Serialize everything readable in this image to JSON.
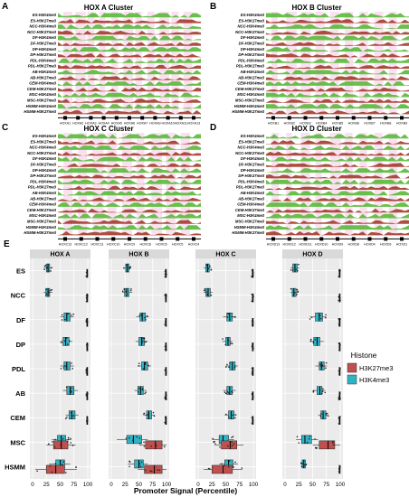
{
  "panels": {
    "A": {
      "letter": "A",
      "title": "HOX A Cluster",
      "genes": [
        "HOXA1",
        "HOXA2",
        "HOXA3",
        "HOXA4",
        "HOXA5",
        "HOXA6",
        "HOXA7",
        "HOXA9",
        "HOXA10",
        "HOXA11",
        "HOXA13"
      ]
    },
    "B": {
      "letter": "B",
      "title": "HOX B Cluster",
      "genes": [
        "HOXB1",
        "HOXB2",
        "HOXB3",
        "HOXB4",
        "HOXB5",
        "HOXB6",
        "HOXB7",
        "HOXB8",
        "HOXB9"
      ]
    },
    "C": {
      "letter": "C",
      "title": "HOX C Cluster",
      "genes": [
        "HOXC13",
        "HOXC12",
        "HOXC11",
        "HOXC10",
        "HOXC9",
        "HOXC8",
        "HOXC6",
        "HOXC5",
        "HOXC4"
      ]
    },
    "D": {
      "letter": "D",
      "title": "HOX D Cluster",
      "genes": [
        "HOXD13",
        "HOXD12",
        "HOXD11",
        "HOXD10",
        "HOXD9",
        "HOXD8",
        "HOXD4",
        "HOXD3",
        "HOXD1"
      ]
    }
  },
  "track_labels": [
    "ES-H3K4me3",
    "ES-H3K27me3",
    "NCC-H3K4me3",
    "NCC-H3K27me3",
    "DF-H3K4me3",
    "DF-H3K27me3",
    "DP-H3K4me3",
    "DP-H3K27me3",
    "PDL-H3K4me3",
    "PDL-H3K27me3",
    "AB-H3K4me3",
    "AB-H3K27me3",
    "CEM-H3K4me3",
    "CEM-H3K27me3",
    "MSC-H3K4me3",
    "MSC-H3K27me3",
    "HSMM-H3K4me3",
    "HSMM-H3K27me3"
  ],
  "colors": {
    "H3K27me3": "#c0504d",
    "H3K4me3": "#2fb4c6",
    "k4_track": "#59b93a",
    "k27_track": "#a33b2b",
    "strip": "#d9d9d9",
    "panel_bg": "#ebebeb"
  },
  "chart_data": {
    "type": "box",
    "panel_letter": "E",
    "facets": [
      "HOX A",
      "HOX B",
      "HOX C",
      "HOX D"
    ],
    "cell_types": [
      "ES",
      "NCC",
      "DF",
      "DP",
      "PDL",
      "AB",
      "CEM",
      "MSC",
      "HSMM"
    ],
    "xlabel": "Promoter Signal (Percentile)",
    "xlim": [
      0,
      100
    ],
    "xticks": [
      0,
      25,
      50,
      75,
      100
    ],
    "legend": {
      "title": "Histone",
      "entries": [
        "H3K27me3",
        "H3K4me3"
      ],
      "position": "right"
    },
    "series": [
      {
        "name": "H3K4me3",
        "boxes": {
          "HOX A": {
            "ES": [
              20,
              25,
              28,
              31,
              36
            ],
            "NCC": [
              20,
              24,
              28,
              31,
              36
            ],
            "DF": [
              50,
              57,
              62,
              68,
              75
            ],
            "DP": [
              50,
              55,
              60,
              66,
              72
            ],
            "PDL": [
              50,
              57,
              62,
              68,
              75
            ],
            "AB": [
              55,
              62,
              68,
              75,
              82
            ],
            "CEM": [
              60,
              66,
              71,
              77,
              83
            ],
            "MSC": [
              35,
              45,
              52,
              60,
              70
            ],
            "HSMM": [
              30,
              42,
              50,
              58,
              68
            ]
          },
          "HOX B": {
            "ES": [
              22,
              26,
              29,
              32,
              36
            ],
            "NCC": [
              20,
              24,
              28,
              32,
              38
            ],
            "DF": [
              45,
              52,
              56,
              62,
              68
            ],
            "DP": [
              44,
              50,
              55,
              60,
              66
            ],
            "PDL": [
              48,
              55,
              60,
              66,
              72
            ],
            "AB": [
              42,
              48,
              53,
              58,
              64
            ],
            "CEM": [
              58,
              64,
              68,
              73,
              78
            ],
            "MSC": [
              10,
              28,
              40,
              55,
              66
            ],
            "HSMM": [
              30,
              42,
              50,
              58,
              66
            ]
          },
          "HOX C": {
            "ES": [
              10,
              14,
              17,
              20,
              24
            ],
            "NCC": [
              10,
              14,
              18,
              22,
              26
            ],
            "DF": [
              45,
              52,
              57,
              62,
              68
            ],
            "DP": [
              44,
              50,
              54,
              58,
              62
            ],
            "PDL": [
              50,
              57,
              62,
              67,
              72
            ],
            "AB": [
              45,
              52,
              57,
              62,
              68
            ],
            "CEM": [
              48,
              55,
              60,
              65,
              70
            ],
            "MSC": [
              25,
              38,
              45,
              55,
              65
            ],
            "HSMM": [
              38,
              48,
              55,
              63,
              72
            ]
          },
          "HOX D": {
            "ES": [
              10,
              14,
              18,
              22,
              26
            ],
            "NCC": [
              10,
              13,
              16,
              20,
              24
            ],
            "DF": [
              45,
              55,
              62,
              68,
              75
            ],
            "DP": [
              45,
              52,
              58,
              63,
              70
            ],
            "PDL": [
              55,
              62,
              66,
              71,
              76
            ],
            "AB": [
              50,
              58,
              63,
              67,
              73
            ],
            "CEM": [
              60,
              65,
              69,
              74,
              78
            ],
            "MSC": [
              20,
              30,
              36,
              48,
              60
            ],
            "HSMM": [
              28,
              31,
              34,
              37,
              40
            ]
          }
        }
      },
      {
        "name": "H3K27me3",
        "boxes": {
          "HOX A": {
            "ES": [
              97,
              98,
              99,
              99.5,
              100
            ],
            "NCC": [
              97,
              98,
              99,
              99.5,
              100
            ],
            "DF": [
              97,
              98,
              99,
              99.5,
              100
            ],
            "DP": [
              97,
              98,
              99,
              99.5,
              100
            ],
            "PDL": [
              97,
              98,
              99,
              99.5,
              100
            ],
            "AB": [
              97,
              98,
              99,
              99.5,
              100
            ],
            "CEM": [
              97,
              98,
              99,
              99.5,
              100
            ],
            "MSC": [
              25,
              38,
              52,
              64,
              78
            ],
            "HSMM": [
              5,
              25,
              42,
              58,
              80
            ]
          },
          "HOX B": {
            "ES": [
              97,
              98,
              99,
              99.5,
              100
            ],
            "NCC": [
              97,
              98,
              99,
              99.5,
              100
            ],
            "DF": [
              97,
              98,
              99,
              99.5,
              100
            ],
            "DP": [
              97,
              98,
              99,
              99.5,
              100
            ],
            "PDL": [
              97,
              98,
              99,
              99.5,
              100
            ],
            "AB": [
              97,
              98,
              99,
              99.5,
              100
            ],
            "CEM": [
              97,
              98,
              99,
              99.5,
              100
            ],
            "MSC": [
              50,
              62,
              80,
              92,
              100
            ],
            "HSMM": [
              48,
              60,
              78,
              92,
              100
            ]
          },
          "HOX C": {
            "ES": [
              97,
              98,
              99,
              99.5,
              100
            ],
            "NCC": [
              97,
              98,
              99,
              99.5,
              100
            ],
            "DF": [
              97,
              98,
              99,
              99.5,
              100
            ],
            "DP": [
              97,
              98,
              99,
              99.5,
              100
            ],
            "PDL": [
              97,
              98,
              99,
              99.5,
              100
            ],
            "AB": [
              97,
              98,
              99,
              99.5,
              100
            ],
            "CEM": [
              97,
              98,
              99,
              99.5,
              100
            ],
            "MSC": [
              30,
              42,
              58,
              70,
              82
            ],
            "HSMM": [
              10,
              25,
              45,
              62,
              80
            ]
          },
          "HOX D": {
            "ES": [
              97,
              98,
              99,
              99.5,
              100
            ],
            "NCC": [
              97,
              98,
              99,
              99.5,
              100
            ],
            "DF": [
              97,
              98,
              99,
              99.5,
              100
            ],
            "DP": [
              97,
              98,
              99,
              99.5,
              100
            ],
            "PDL": [
              97,
              98,
              99,
              99.5,
              100
            ],
            "AB": [
              97,
              98,
              99,
              99.5,
              100
            ],
            "CEM": [
              97,
              98,
              99,
              99.5,
              100
            ],
            "MSC": [
              50,
              62,
              78,
              90,
              100
            ],
            "HSMM": [
              97,
              98,
              99,
              99.5,
              100
            ]
          }
        }
      }
    ]
  }
}
